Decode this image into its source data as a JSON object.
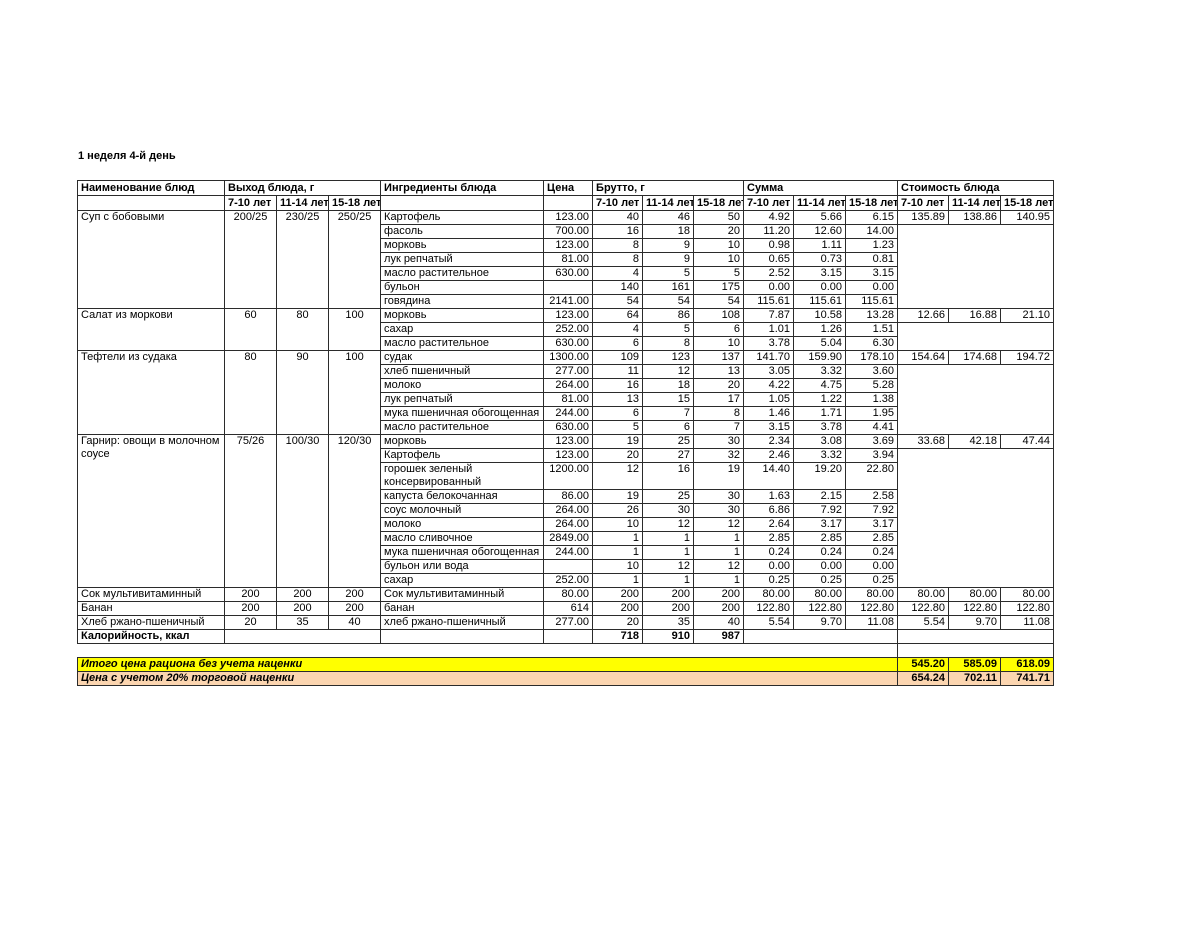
{
  "title": "1 неделя 4-й день",
  "colors": {
    "highlight_total": "#FFFF00",
    "highlight_markup": "#FBD5B0",
    "grid": "#2b2b2b"
  },
  "table": {
    "headers": {
      "dish": "Наименование блюд",
      "yield": "Выход блюда, г",
      "ingredients": "Ингредиенты блюда",
      "price": "Цена",
      "gross": "Брутто, г",
      "sum": "Сумма",
      "cost": "Стоимость блюда",
      "age_groups": [
        "7-10 лет",
        "11-14 лет",
        "15-18 лет"
      ]
    },
    "dishes": [
      {
        "name": "Суп с бобовыми",
        "yield": [
          "200/25",
          "230/25",
          "250/25"
        ],
        "cost": [
          "135.89",
          "138.86",
          "140.95"
        ],
        "ingredients": [
          {
            "name": "Картофель",
            "price": "123.00",
            "gross": [
              "40",
              "46",
              "50"
            ],
            "sum": [
              "4.92",
              "5.66",
              "6.15"
            ]
          },
          {
            "name": "фасоль",
            "price": "700.00",
            "gross": [
              "16",
              "18",
              "20"
            ],
            "sum": [
              "11.20",
              "12.60",
              "14.00"
            ]
          },
          {
            "name": "морковь",
            "price": "123.00",
            "gross": [
              "8",
              "9",
              "10"
            ],
            "sum": [
              "0.98",
              "1.11",
              "1.23"
            ]
          },
          {
            "name": "лук репчатый",
            "price": "81.00",
            "gross": [
              "8",
              "9",
              "10"
            ],
            "sum": [
              "0.65",
              "0.73",
              "0.81"
            ]
          },
          {
            "name": "масло растительное",
            "price": "630.00",
            "gross": [
              "4",
              "5",
              "5"
            ],
            "sum": [
              "2.52",
              "3.15",
              "3.15"
            ]
          },
          {
            "name": "бульон",
            "price": "",
            "gross": [
              "140",
              "161",
              "175"
            ],
            "sum": [
              "0.00",
              "0.00",
              "0.00"
            ]
          },
          {
            "name": "говядина",
            "price": "2141.00",
            "gross": [
              "54",
              "54",
              "54"
            ],
            "sum": [
              "115.61",
              "115.61",
              "115.61"
            ]
          }
        ]
      },
      {
        "name": "Салат из моркови",
        "yield": [
          "60",
          "80",
          "100"
        ],
        "cost": [
          "12.66",
          "16.88",
          "21.10"
        ],
        "ingredients": [
          {
            "name": "морковь",
            "price": "123.00",
            "gross": [
              "64",
              "86",
              "108"
            ],
            "sum": [
              "7.87",
              "10.58",
              "13.28"
            ]
          },
          {
            "name": "сахар",
            "price": "252.00",
            "gross": [
              "4",
              "5",
              "6"
            ],
            "sum": [
              "1.01",
              "1.26",
              "1.51"
            ]
          },
          {
            "name": "масло растительное",
            "price": "630.00",
            "gross": [
              "6",
              "8",
              "10"
            ],
            "sum": [
              "3.78",
              "5.04",
              "6.30"
            ]
          }
        ]
      },
      {
        "name": "Тефтели из судака",
        "yield": [
          "80",
          "90",
          "100"
        ],
        "cost": [
          "154.64",
          "174.68",
          "194.72"
        ],
        "ingredients": [
          {
            "name": "судак",
            "price": "1300.00",
            "gross": [
              "109",
              "123",
              "137"
            ],
            "sum": [
              "141.70",
              "159.90",
              "178.10"
            ]
          },
          {
            "name": "хлеб пшеничный",
            "price": "277.00",
            "gross": [
              "11",
              "12",
              "13"
            ],
            "sum": [
              "3.05",
              "3.32",
              "3.60"
            ]
          },
          {
            "name": "молоко",
            "price": "264.00",
            "gross": [
              "16",
              "18",
              "20"
            ],
            "sum": [
              "4.22",
              "4.75",
              "5.28"
            ]
          },
          {
            "name": "лук репчатый",
            "price": "81.00",
            "gross": [
              "13",
              "15",
              "17"
            ],
            "sum": [
              "1.05",
              "1.22",
              "1.38"
            ]
          },
          {
            "name": "мука пшеничная обогощенная",
            "price": "244.00",
            "gross": [
              "6",
              "7",
              "8"
            ],
            "sum": [
              "1.46",
              "1.71",
              "1.95"
            ]
          },
          {
            "name": "масло растительное",
            "price": "630.00",
            "gross": [
              "5",
              "6",
              "7"
            ],
            "sum": [
              "3.15",
              "3.78",
              "4.41"
            ]
          }
        ]
      },
      {
        "name": "Гарнир: овощи в молочном соусе",
        "yield": [
          "75/26",
          "100/30",
          "120/30"
        ],
        "cost": [
          "33.68",
          "42.18",
          "47.44"
        ],
        "ingredients": [
          {
            "name": "морковь",
            "price": "123.00",
            "gross": [
              "19",
              "25",
              "30"
            ],
            "sum": [
              "2.34",
              "3.08",
              "3.69"
            ]
          },
          {
            "name": "Картофель",
            "price": "123.00",
            "gross": [
              "20",
              "27",
              "32"
            ],
            "sum": [
              "2.46",
              "3.32",
              "3.94"
            ]
          },
          {
            "name": "горошек зеленый консервированный",
            "price": "1200.00",
            "gross": [
              "12",
              "16",
              "19"
            ],
            "sum": [
              "14.40",
              "19.20",
              "22.80"
            ]
          },
          {
            "name": "капуста белокочанная",
            "price": "86.00",
            "gross": [
              "19",
              "25",
              "30"
            ],
            "sum": [
              "1.63",
              "2.15",
              "2.58"
            ]
          },
          {
            "name": "соус молочный",
            "price": "264.00",
            "gross": [
              "26",
              "30",
              "30"
            ],
            "sum": [
              "6.86",
              "7.92",
              "7.92"
            ]
          },
          {
            "name": "молоко",
            "price": "264.00",
            "gross": [
              "10",
              "12",
              "12"
            ],
            "sum": [
              "2.64",
              "3.17",
              "3.17"
            ]
          },
          {
            "name": "масло сливочное",
            "price": "2849.00",
            "gross": [
              "1",
              "1",
              "1"
            ],
            "sum": [
              "2.85",
              "2.85",
              "2.85"
            ]
          },
          {
            "name": "мука пшеничная обогощенная",
            "price": "244.00",
            "gross": [
              "1",
              "1",
              "1"
            ],
            "sum": [
              "0.24",
              "0.24",
              "0.24"
            ]
          },
          {
            "name": "бульон или вода",
            "price": "",
            "gross": [
              "10",
              "12",
              "12"
            ],
            "sum": [
              "0.00",
              "0.00",
              "0.00"
            ]
          },
          {
            "name": "сахар",
            "price": "252.00",
            "gross": [
              "1",
              "1",
              "1"
            ],
            "sum": [
              "0.25",
              "0.25",
              "0.25"
            ]
          }
        ]
      },
      {
        "name": "Сок мультивитаминный",
        "yield": [
          "200",
          "200",
          "200"
        ],
        "cost": [
          "80.00",
          "80.00",
          "80.00"
        ],
        "ingredients": [
          {
            "name": "Сок мультивитаминный",
            "price": "80.00",
            "gross": [
              "200",
              "200",
              "200"
            ],
            "sum": [
              "80.00",
              "80.00",
              "80.00"
            ]
          }
        ]
      },
      {
        "name": "Банан",
        "yield": [
          "200",
          "200",
          "200"
        ],
        "cost": [
          "122.80",
          "122.80",
          "122.80"
        ],
        "ingredients": [
          {
            "name": "банан",
            "price": "614",
            "gross": [
              "200",
              "200",
              "200"
            ],
            "sum": [
              "122.80",
              "122.80",
              "122.80"
            ]
          }
        ]
      },
      {
        "name": "Хлеб ржано-пшеничный",
        "yield": [
          "20",
          "35",
          "40"
        ],
        "cost": [
          "5.54",
          "9.70",
          "11.08"
        ],
        "ingredients": [
          {
            "name": "хлеб ржано-пшеничный",
            "price": "277.00",
            "gross": [
              "20",
              "35",
              "40"
            ],
            "sum": [
              "5.54",
              "9.70",
              "11.08"
            ]
          }
        ]
      }
    ],
    "calories_row": {
      "label": "Калорийность, ккал",
      "values": [
        "718",
        "910",
        "987"
      ]
    },
    "totals": [
      {
        "label": "Итого цена рациона без учета наценки",
        "values": [
          "545.20",
          "585.09",
          "618.09"
        ]
      },
      {
        "label": "Цена с учетом 20% торговой наценки",
        "values": [
          "654.24",
          "702.11",
          "741.71"
        ]
      }
    ]
  }
}
